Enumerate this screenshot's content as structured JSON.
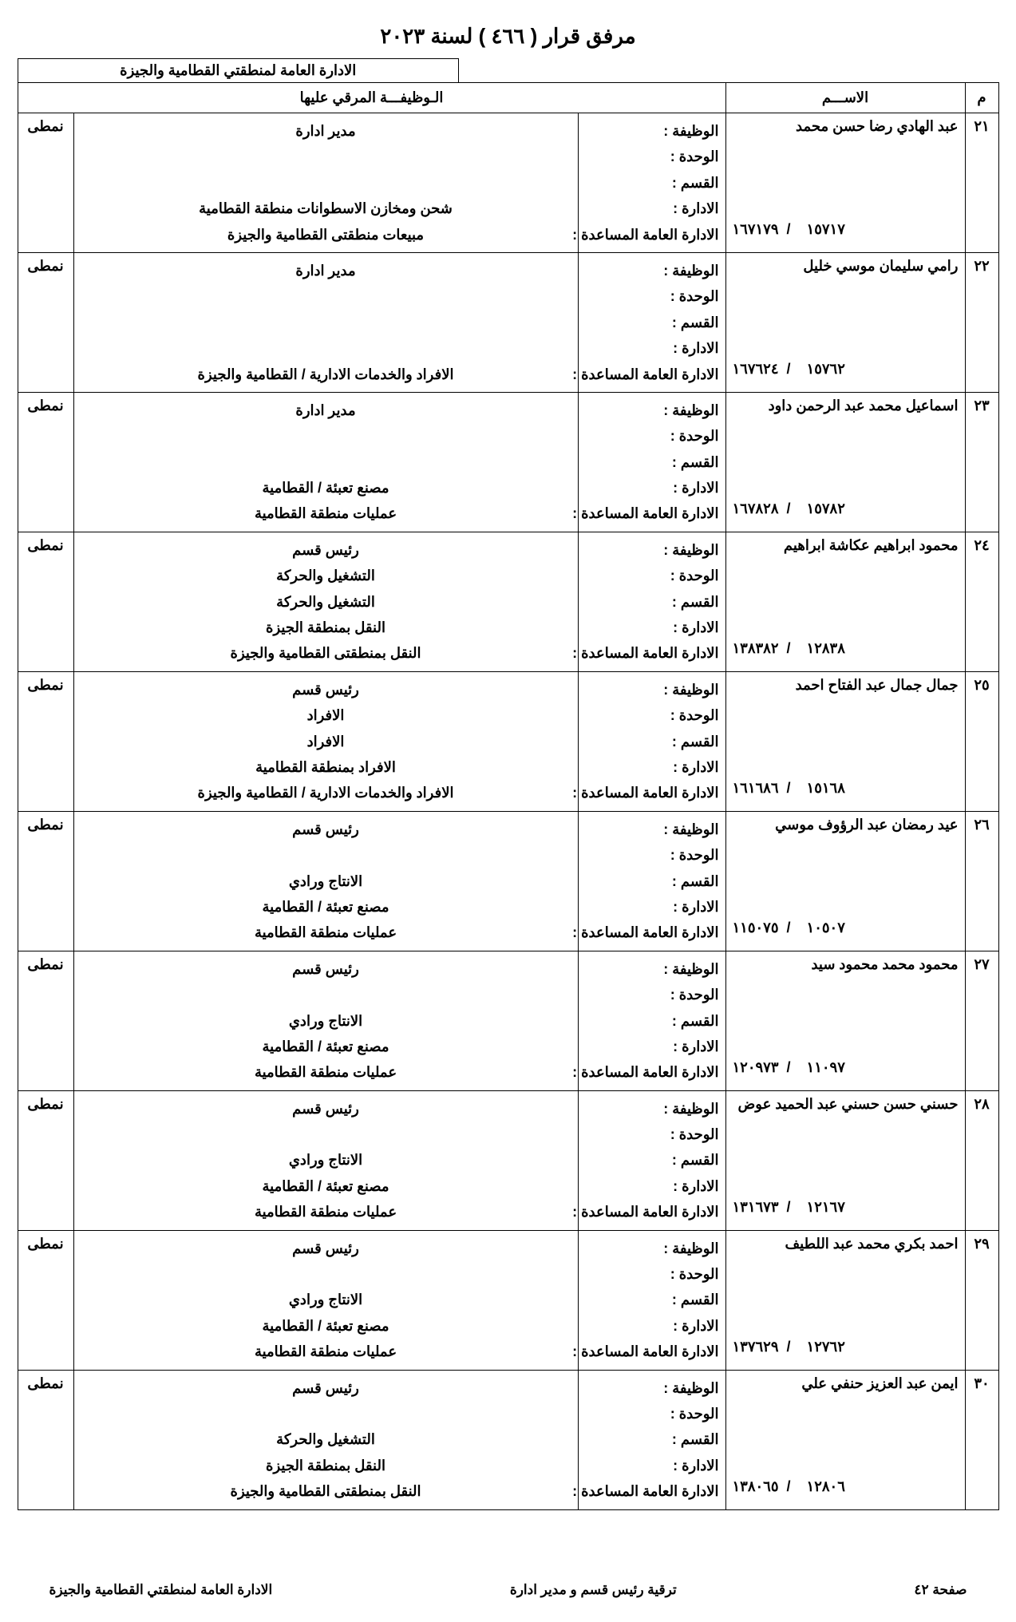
{
  "title": "مرفق قرار ( ٤٦٦ ) لسنة ٢٠٢٣",
  "region": "الادارة العامة لمنطقتي القطامية والجيزة",
  "headers": {
    "seq": "م",
    "name": "الاســـم",
    "promoted": "الـوظيفـــة المرقي عليها"
  },
  "fieldLabels": {
    "job": "الوظيفة :",
    "unit": "الوحدة :",
    "section": "القسم :",
    "admin": "الادارة :",
    "general": "الادارة العامة المساعدة :"
  },
  "rows": [
    {
      "seq": "٢١",
      "name": "عبد الهادي رضا حسن محمد",
      "code1": "١٦٧١٧٩",
      "code2": "١٥٧١٧",
      "job": "مدير ادارة",
      "unit": "",
      "section": "",
      "admin": "شحن ومخازن الاسطوانات منطقة القطامية",
      "general": "مبيعات منطقتى القطامية والجيزة",
      "type": "نمطى"
    },
    {
      "seq": "٢٢",
      "name": "رامي سليمان موسي خليل",
      "code1": "١٦٧٦٢٤",
      "code2": "١٥٧٦٢",
      "job": "مدير ادارة",
      "unit": "",
      "section": "",
      "admin": "",
      "general": "الافراد والخدمات الادارية / القطامية والجيزة",
      "type": "نمطى"
    },
    {
      "seq": "٢٣",
      "name": "اسماعيل محمد عبد الرحمن داود",
      "code1": "١٦٧٨٢٨",
      "code2": "١٥٧٨٢",
      "job": "مدير ادارة",
      "unit": "",
      "section": "",
      "admin": "مصنع تعبئة / القطامية",
      "general": "عمليات منطقة القطامية",
      "type": "نمطى"
    },
    {
      "seq": "٢٤",
      "name": "محمود ابراهيم عكاشة ابراهيم",
      "code1": "١٣٨٣٨٢",
      "code2": "١٢٨٣٨",
      "job": "رئيس قسم",
      "unit": "التشغيل والحركة",
      "section": "التشغيل والحركة",
      "admin": "النقل بمنطقة الجيزة",
      "general": "النقل بمنطقتى القطامية والجيزة",
      "type": "نمطى"
    },
    {
      "seq": "٢٥",
      "name": "جمال جمال عبد الفتاح احمد",
      "code1": "١٦١٦٨٦",
      "code2": "١٥١٦٨",
      "job": "رئيس قسم",
      "unit": "الافراد",
      "section": "الافراد",
      "admin": "الافراد بمنطقة القطامية",
      "general": "الافراد والخدمات الادارية / القطامية والجيزة",
      "type": "نمطى"
    },
    {
      "seq": "٢٦",
      "name": "عيد رمضان عبد الرؤوف موسي",
      "code1": "١١٥٠٧٥",
      "code2": "١٠٥٠٧",
      "job": "رئيس قسم",
      "unit": "",
      "section": "الانتاج ورادي",
      "admin": "مصنع تعبئة / القطامية",
      "general": "عمليات منطقة القطامية",
      "type": "نمطى"
    },
    {
      "seq": "٢٧",
      "name": "محمود محمد محمود سيد",
      "code1": "١٢٠٩٧٣",
      "code2": "١١٠٩٧",
      "job": "رئيس قسم",
      "unit": "",
      "section": "الانتاج ورادي",
      "admin": "مصنع تعبئة / القطامية",
      "general": "عمليات منطقة القطامية",
      "type": "نمطى"
    },
    {
      "seq": "٢٨",
      "name": "حسني حسن حسني عبد الحميد عوض",
      "code1": "١٣١٦٧٣",
      "code2": "١٢١٦٧",
      "job": "رئيس قسم",
      "unit": "",
      "section": "الانتاج ورادي",
      "admin": "مصنع تعبئة / القطامية",
      "general": "عمليات منطقة القطامية",
      "type": "نمطى"
    },
    {
      "seq": "٢٩",
      "name": "احمد بكري محمد عبد اللطيف",
      "code1": "١٣٧٦٢٩",
      "code2": "١٢٧٦٢",
      "job": "رئيس قسم",
      "unit": "",
      "section": "الانتاج ورادي",
      "admin": "مصنع تعبئة / القطامية",
      "general": "عمليات منطقة القطامية",
      "type": "نمطى"
    },
    {
      "seq": "٣٠",
      "name": "ايمن عبد العزيز حنفي علي",
      "code1": "١٣٨٠٦٥",
      "code2": "١٢٨٠٦",
      "job": "رئيس قسم",
      "unit": "",
      "section": "التشغيل والحركة",
      "admin": "النقل بمنطقة الجيزة",
      "general": "النقل بمنطقتى القطامية والجيزة",
      "type": "نمطى"
    }
  ],
  "footer": {
    "page": "صفحة ٤٢",
    "center": "ترقية رئيس قسم و مدير ادارة",
    "left": "الادارة العامة لمنطقتي القطامية والجيزة"
  }
}
